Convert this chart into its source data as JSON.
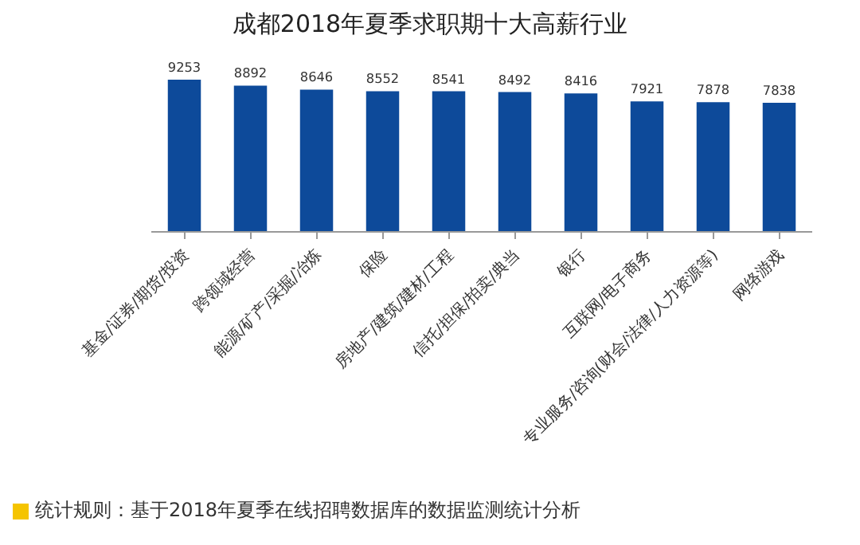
{
  "chart_data": {
    "type": "bar",
    "title": "成都2018年夏季求职期十大高薪行业",
    "categories": [
      "基金/证券/期货/投资",
      "跨领域经营",
      "能源/矿产/采掘/冶炼",
      "保险",
      "房地产/建筑/建材/工程",
      "信托/担保/拍卖/典当",
      "银行",
      "互联网/电子商务",
      "专业服务/咨询(财会/法律/人力资源等)",
      "网络游戏"
    ],
    "values": [
      9253,
      8892,
      8646,
      8552,
      8541,
      8492,
      8416,
      7921,
      7878,
      7838
    ],
    "color": "#0d4a9a",
    "data_labels": true,
    "tick_labels": "x",
    "grid": false,
    "legend": false,
    "annotations": [
      "统计规则：基于2018年夏季在线招聘数据库的数据监测统计分析"
    ]
  }
}
